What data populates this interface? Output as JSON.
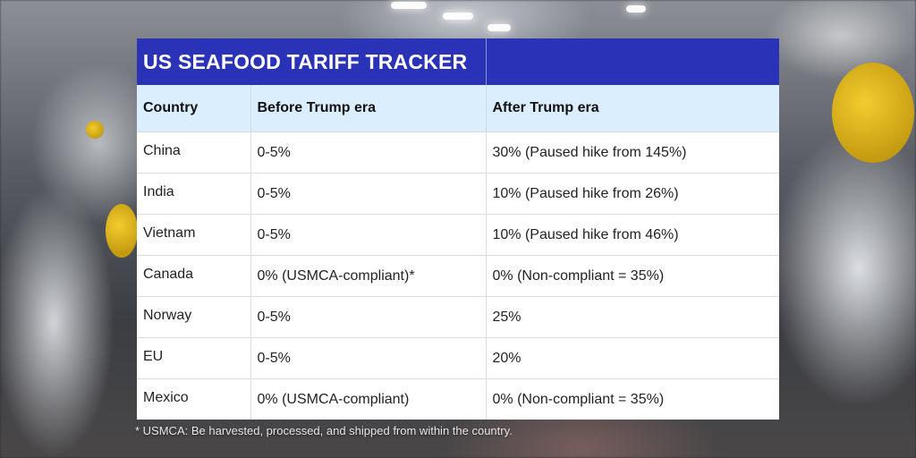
{
  "title": "US SEAFOOD TARIFF TRACKER",
  "headers": [
    "Country",
    "Before Trump era",
    "After Trump era"
  ],
  "rows": [
    {
      "country": "China",
      "before": "0-5%",
      "after": "30% (Paused hike from 145%)"
    },
    {
      "country": "India",
      "before": "0-5%",
      "after": "10% (Paused hike from 26%)"
    },
    {
      "country": "Vietnam",
      "before": "0-5%",
      "after": "10% (Paused hike from 46%)"
    },
    {
      "country": "Canada",
      "before": "0% (USMCA-compliant)*",
      "after": "0% (Non-compliant = 35%)"
    },
    {
      "country": "Norway",
      "before": "0-5%",
      "after": "25%"
    },
    {
      "country": "EU",
      "before": "0-5%",
      "after": "20%"
    },
    {
      "country": "Mexico",
      "before": "0% (USMCA-compliant)",
      "after": "0% (Non-compliant = 35%)"
    }
  ],
  "footnote": "* USMCA: Be harvested, processed, and shipped from within the country.",
  "colors": {
    "title_bg": "#2a33b8",
    "header_bg": "#daeefe",
    "table_bg": "#ffffff"
  }
}
